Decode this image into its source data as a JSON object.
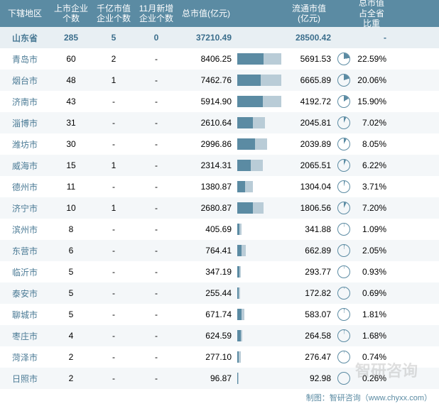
{
  "table": {
    "header": {
      "region": "下辖地区",
      "companies": "上市企业个数",
      "kyi": "千亿市值企业个数",
      "newly": "11月新增企业个数",
      "total_mv": "总市值(亿元)",
      "circ_mv": "流通市值(亿元)",
      "pct": "总市值占全省比重"
    },
    "highlight": {
      "region": "山东省",
      "companies": "285",
      "kyi": "5",
      "newly": "0",
      "total_mv": "37210.49",
      "circ_mv": "28500.42",
      "pct": "-"
    },
    "max_total": 8406.25,
    "max_circ": 6665.89,
    "colors": {
      "header_bg": "#5b8ba3",
      "highlight_bg": "#e8eff3",
      "even_bg": "#f4f7f9",
      "odd_bg": "#ffffff",
      "bar_total": "#5b8ba3",
      "bar_circ": "#b9ccd7",
      "pie_stroke": "#5b8ba3",
      "region_text": "#4a7a95"
    },
    "rows": [
      {
        "region": "青岛市",
        "companies": "60",
        "kyi": "2",
        "newly": "-",
        "total_mv": 8406.25,
        "circ_mv": 5691.53,
        "pct": 22.59
      },
      {
        "region": "烟台市",
        "companies": "48",
        "kyi": "1",
        "newly": "-",
        "total_mv": 7462.76,
        "circ_mv": 6665.89,
        "pct": 20.06
      },
      {
        "region": "济南市",
        "companies": "43",
        "kyi": "-",
        "newly": "-",
        "total_mv": 5914.9,
        "circ_mv": 4192.72,
        "pct": 15.9
      },
      {
        "region": "淄博市",
        "companies": "31",
        "kyi": "-",
        "newly": "-",
        "total_mv": 2610.64,
        "circ_mv": 2045.81,
        "pct": 7.02
      },
      {
        "region": "潍坊市",
        "companies": "30",
        "kyi": "-",
        "newly": "-",
        "total_mv": 2996.86,
        "circ_mv": 2039.89,
        "pct": 8.05
      },
      {
        "region": "威海市",
        "companies": "15",
        "kyi": "1",
        "newly": "-",
        "total_mv": 2314.31,
        "circ_mv": 2065.51,
        "pct": 6.22
      },
      {
        "region": "德州市",
        "companies": "11",
        "kyi": "-",
        "newly": "-",
        "total_mv": 1380.87,
        "circ_mv": 1304.04,
        "pct": 3.71
      },
      {
        "region": "济宁市",
        "companies": "10",
        "kyi": "1",
        "newly": "-",
        "total_mv": 2680.87,
        "circ_mv": 1806.56,
        "pct": 7.2
      },
      {
        "region": "滨州市",
        "companies": "8",
        "kyi": "-",
        "newly": "-",
        "total_mv": 405.69,
        "circ_mv": 341.88,
        "pct": 1.09
      },
      {
        "region": "东营市",
        "companies": "6",
        "kyi": "-",
        "newly": "-",
        "total_mv": 764.41,
        "circ_mv": 662.89,
        "pct": 2.05
      },
      {
        "region": "临沂市",
        "companies": "5",
        "kyi": "-",
        "newly": "-",
        "total_mv": 347.19,
        "circ_mv": 293.77,
        "pct": 0.93
      },
      {
        "region": "泰安市",
        "companies": "5",
        "kyi": "-",
        "newly": "-",
        "total_mv": 255.44,
        "circ_mv": 172.82,
        "pct": 0.69
      },
      {
        "region": "聊城市",
        "companies": "5",
        "kyi": "-",
        "newly": "-",
        "total_mv": 671.74,
        "circ_mv": 583.07,
        "pct": 1.81
      },
      {
        "region": "枣庄市",
        "companies": "4",
        "kyi": "-",
        "newly": "-",
        "total_mv": 624.59,
        "circ_mv": 264.58,
        "pct": 1.68
      },
      {
        "region": "菏泽市",
        "companies": "2",
        "kyi": "-",
        "newly": "-",
        "total_mv": 277.1,
        "circ_mv": 276.47,
        "pct": 0.74
      },
      {
        "region": "日照市",
        "companies": "2",
        "kyi": "-",
        "newly": "-",
        "total_mv": 96.87,
        "circ_mv": 92.98,
        "pct": 0.26
      }
    ]
  },
  "footer": "制图：智研咨询（www.chyxx.com）",
  "watermark": "智研咨询"
}
